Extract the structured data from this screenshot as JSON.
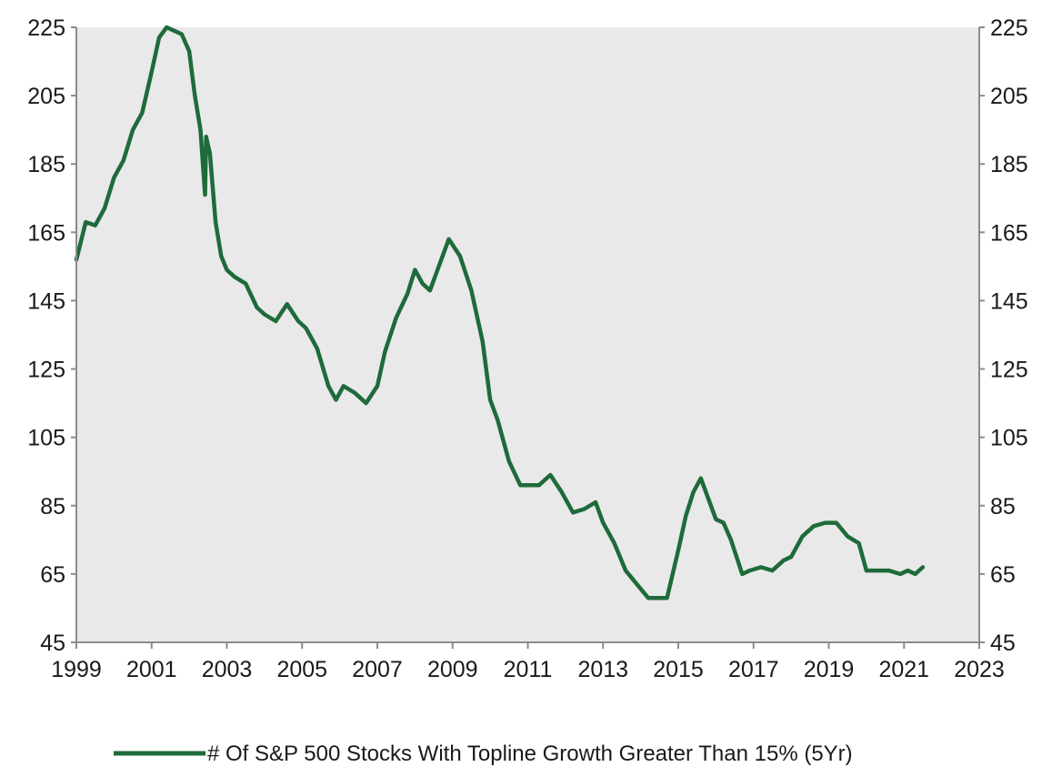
{
  "chart_data": {
    "type": "line",
    "title": "",
    "xlabel": "",
    "ylabel": "",
    "xlim": [
      1999,
      2023
    ],
    "ylim": [
      45,
      225
    ],
    "y2lim": [
      45,
      225
    ],
    "x_ticks": [
      "1999",
      "2001",
      "2003",
      "2005",
      "2007",
      "2009",
      "2011",
      "2013",
      "2015",
      "2017",
      "2019",
      "2021",
      "2023"
    ],
    "y_ticks": [
      "45",
      "65",
      "85",
      "105",
      "125",
      "145",
      "165",
      "185",
      "205",
      "225"
    ],
    "y2_ticks": [
      "45",
      "65",
      "85",
      "105",
      "125",
      "145",
      "165",
      "185",
      "205",
      "225"
    ],
    "grid": false,
    "plot_background": "#e9e9e9",
    "legend_position": "bottom",
    "series": [
      {
        "name": "# Of S&P 500 Stocks With Topline Growth Greater Than 15% (5Yr)",
        "color": "#1e6b3a",
        "x": [
          1999.0,
          1999.25,
          1999.5,
          1999.75,
          2000.0,
          2000.25,
          2000.5,
          2000.75,
          2001.0,
          2001.2,
          2001.4,
          2001.6,
          2001.8,
          2002.0,
          2002.15,
          2002.3,
          2002.42,
          2002.45,
          2002.55,
          2002.7,
          2002.85,
          2003.0,
          2003.2,
          2003.5,
          2003.8,
          2004.0,
          2004.3,
          2004.6,
          2004.9,
          2005.1,
          2005.4,
          2005.7,
          2005.9,
          2006.1,
          2006.4,
          2006.7,
          2007.0,
          2007.2,
          2007.5,
          2007.8,
          2008.0,
          2008.2,
          2008.4,
          2008.6,
          2008.9,
          2009.2,
          2009.5,
          2009.8,
          2010.0,
          2010.2,
          2010.5,
          2010.8,
          2011.0,
          2011.3,
          2011.6,
          2011.9,
          2012.2,
          2012.5,
          2012.8,
          2013.0,
          2013.3,
          2013.6,
          2013.9,
          2014.2,
          2014.5,
          2014.7,
          2015.0,
          2015.2,
          2015.4,
          2015.6,
          2015.8,
          2016.0,
          2016.2,
          2016.4,
          2016.7,
          2016.9,
          2017.2,
          2017.5,
          2017.8,
          2018.0,
          2018.3,
          2018.6,
          2018.9,
          2019.2,
          2019.5,
          2019.8,
          2020.0,
          2020.3,
          2020.6,
          2020.9,
          2021.1,
          2021.3,
          2021.5
        ],
        "values": [
          157,
          168,
          167,
          172,
          181,
          186,
          195,
          200,
          212,
          222,
          225,
          224,
          223,
          218,
          205,
          195,
          176,
          193,
          188,
          168,
          158,
          154,
          152,
          150,
          143,
          141,
          139,
          144,
          139,
          137,
          131,
          120,
          116,
          120,
          118,
          115,
          120,
          130,
          140,
          147,
          154,
          150,
          148,
          154,
          163,
          158,
          148,
          133,
          116,
          110,
          98,
          91,
          91,
          91,
          94,
          89,
          83,
          84,
          86,
          80,
          74,
          66,
          62,
          58,
          58,
          58,
          72,
          82,
          89,
          93,
          87,
          81,
          80,
          75,
          65,
          66,
          67,
          66,
          69,
          70,
          76,
          79,
          80,
          80,
          76,
          74,
          66,
          66,
          66,
          65,
          66,
          65,
          67
        ]
      }
    ]
  }
}
